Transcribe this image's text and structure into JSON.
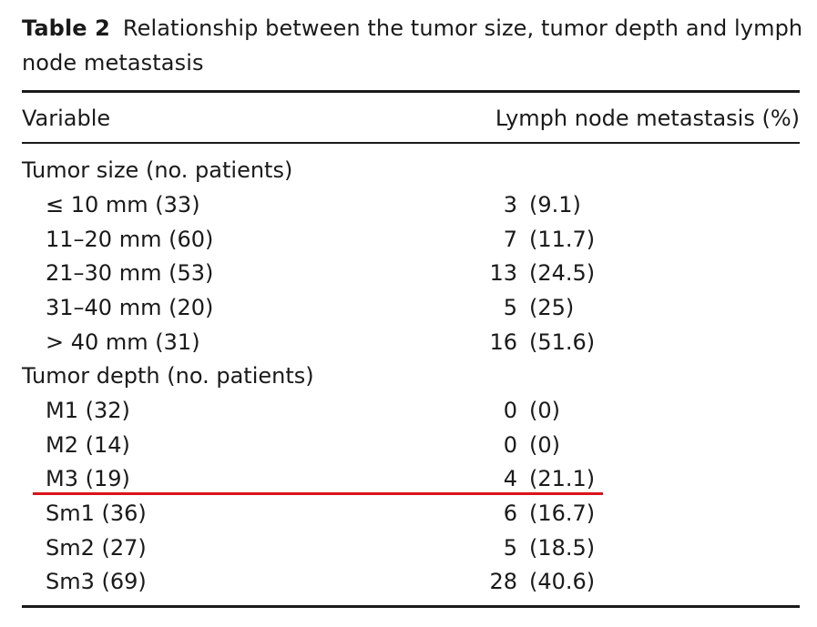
{
  "caption": {
    "label": "Table 2",
    "text": "Relationship between the tumor size, tumor depth and lymph node metastasis"
  },
  "header": {
    "variable": "Variable",
    "lymph": "Lymph node metastasis (%)"
  },
  "rows": [
    {
      "variable": "Tumor size (no. patients)",
      "count": "",
      "pct": ""
    },
    {
      "variable": "≤ 10 mm (33)",
      "count": "3",
      "pct": "(9.1)"
    },
    {
      "variable": "11–20 mm (60)",
      "count": "7",
      "pct": "(11.7)"
    },
    {
      "variable": "21–30 mm (53)",
      "count": "13",
      "pct": "(24.5)"
    },
    {
      "variable": "31–40 mm (20)",
      "count": "5",
      "pct": "(25)"
    },
    {
      "variable": "> 40 mm (31)",
      "count": "16",
      "pct": "(51.6)"
    },
    {
      "variable": "Tumor depth (no. patients)",
      "count": "",
      "pct": ""
    },
    {
      "variable": "M1 (32)",
      "count": "0",
      "pct": "(0)"
    },
    {
      "variable": "M2 (14)",
      "count": "0",
      "pct": "(0)"
    },
    {
      "variable": "M3 (19)",
      "count": "4",
      "pct": "(21.1)"
    },
    {
      "variable": "Sm1 (36)",
      "count": "6",
      "pct": "(16.7)"
    },
    {
      "variable": "Sm2 (27)",
      "count": "5",
      "pct": "(18.5)"
    },
    {
      "variable": "Sm3 (69)",
      "count": "28",
      "pct": "(40.6)"
    }
  ],
  "annotation": {
    "underline_color": "#d9141c"
  }
}
